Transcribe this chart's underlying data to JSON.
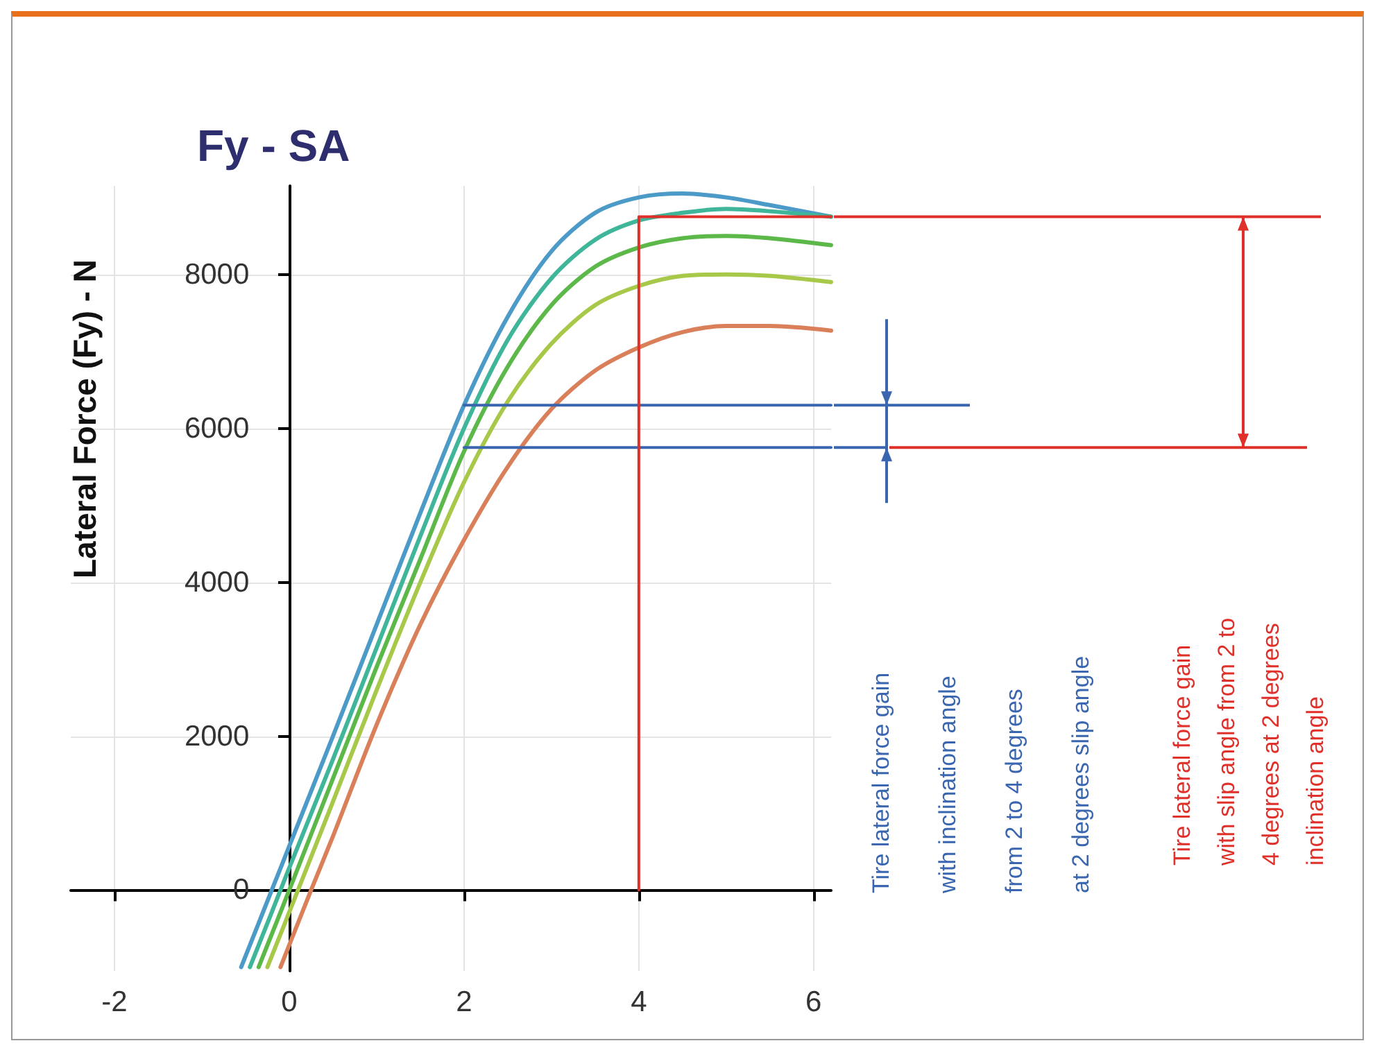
{
  "chart_data": {
    "type": "line",
    "title": "Fy - SA",
    "ylabel": "Lateral Force (Fy) - N",
    "xlim": [
      -2.5,
      6.2
    ],
    "ylim": [
      -1050,
      9150
    ],
    "xticks": [
      -2,
      0,
      2,
      4,
      6
    ],
    "yticks": [
      0,
      2000,
      4000,
      6000,
      8000
    ],
    "grid": true,
    "marker": "none",
    "line_style": "solid",
    "series": [
      {
        "color": "#4b9ac8",
        "x": [
          -0.55,
          -0.2,
          0,
          0.5,
          1,
          1.5,
          2,
          2.5,
          3,
          3.5,
          4,
          4.5,
          5,
          5.5,
          6.2
        ],
        "values": [
          -1000,
          0,
          570,
          2000,
          3450,
          4900,
          6300,
          7450,
          8300,
          8800,
          9000,
          9050,
          9000,
          8900,
          8750
        ]
      },
      {
        "color": "#3fb59a",
        "x": [
          -0.45,
          -0.1,
          0,
          0.5,
          1,
          1.5,
          2,
          2.5,
          3,
          3.5,
          4,
          4.5,
          5,
          5.5,
          6.2
        ],
        "values": [
          -1000,
          0,
          290,
          1700,
          3150,
          4600,
          6000,
          7150,
          7950,
          8450,
          8700,
          8800,
          8850,
          8820,
          8750
        ]
      },
      {
        "color": "#5db84a",
        "x": [
          -0.35,
          0,
          0.5,
          1,
          1.5,
          2,
          2.5,
          3,
          3.5,
          4,
          4.5,
          5,
          5.5,
          6.2
        ],
        "values": [
          -1000,
          0,
          1450,
          2900,
          4300,
          5700,
          6800,
          7600,
          8100,
          8350,
          8470,
          8500,
          8470,
          8380
        ]
      },
      {
        "color": "#a8c84a",
        "x": [
          -0.25,
          0.1,
          0.5,
          1,
          1.5,
          2,
          2.5,
          3,
          3.5,
          4,
          4.5,
          5,
          5.5,
          6.2
        ],
        "values": [
          -1000,
          0,
          1150,
          2600,
          4000,
          5300,
          6350,
          7100,
          7600,
          7850,
          7980,
          8000,
          7980,
          7900
        ]
      },
      {
        "color": "#d9805a",
        "x": [
          -0.1,
          0.25,
          0.5,
          1,
          1.5,
          2,
          2.5,
          3,
          3.5,
          4,
          4.5,
          5,
          5.5,
          6.2
        ],
        "values": [
          -1000,
          0,
          700,
          2150,
          3450,
          4550,
          5500,
          6250,
          6750,
          7050,
          7250,
          7330,
          7330,
          7270
        ]
      },
      {
        "color": "#3a66b0",
        "x": [
          2,
          6.2
        ],
        "values": [
          6300,
          6300
        ]
      },
      {
        "color": "#3a66b0",
        "x": [
          2,
          6.2
        ],
        "values": [
          5750,
          5750
        ]
      },
      {
        "color": "#e0302a",
        "x": [
          4,
          4,
          6.2
        ],
        "values": [
          0,
          8750,
          8750
        ]
      }
    ],
    "annotations": [
      "Tire lateral force gain\nwith inclination angle\nfrom 2 to 4 degrees\nat 2 degrees slip angle",
      "Tire lateral force gain\nwith slip angle from 2 to\n4 degrees at 2 degrees\ninclination angle"
    ]
  }
}
